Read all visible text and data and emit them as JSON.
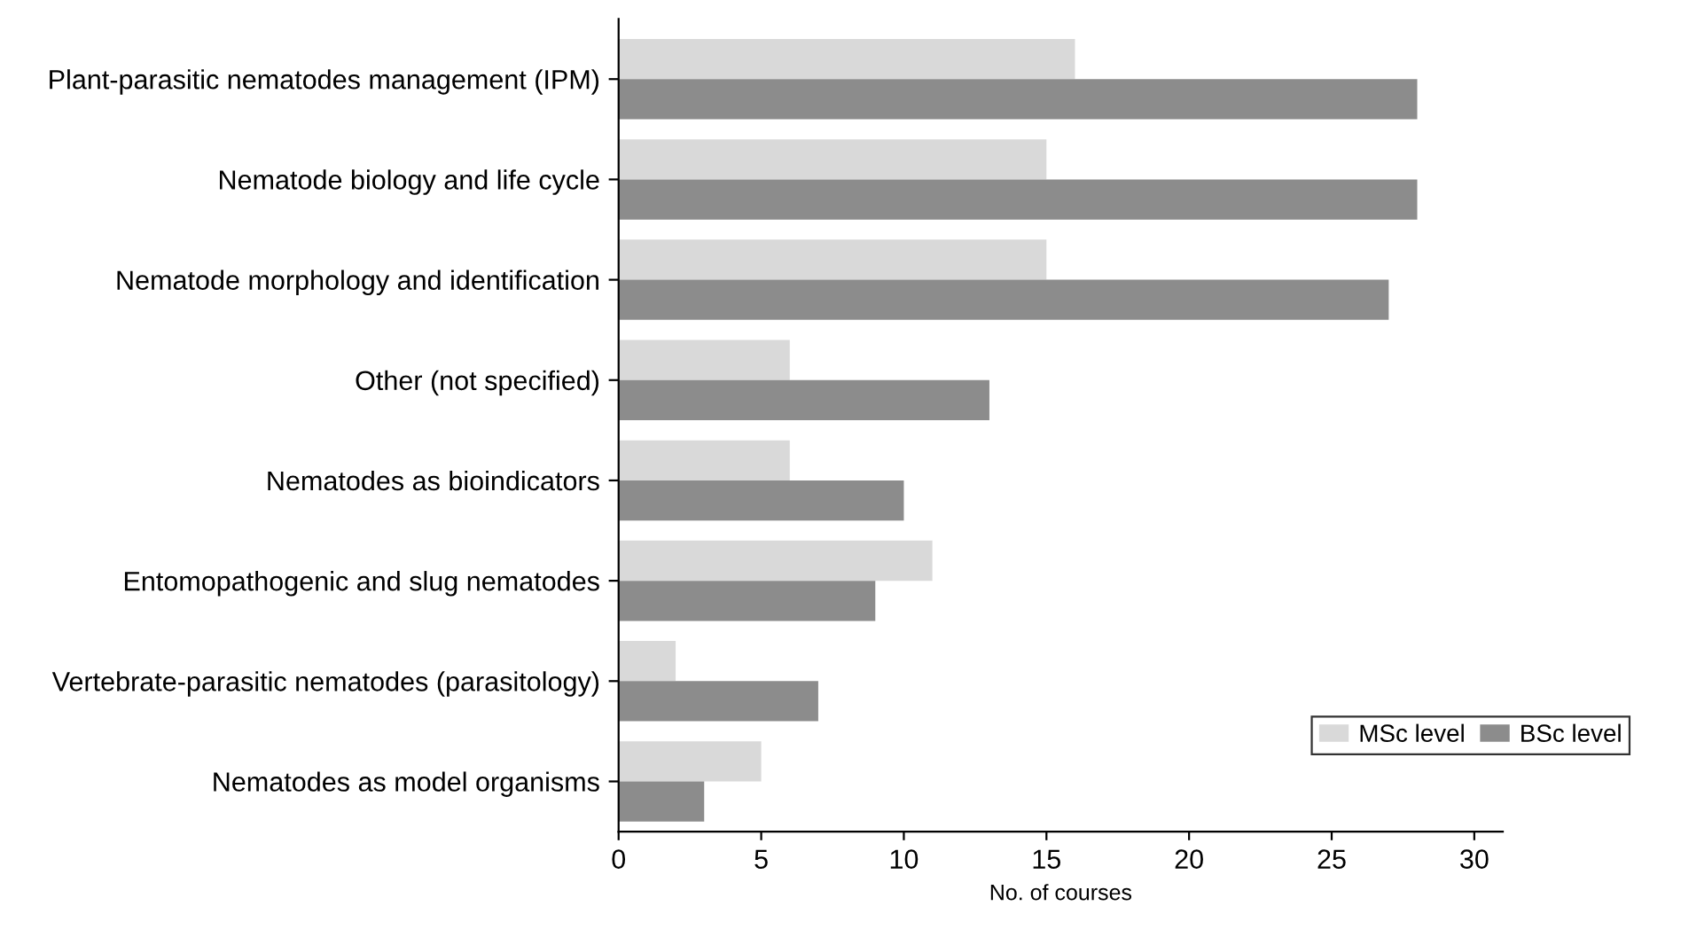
{
  "chart_data": {
    "type": "bar",
    "orientation": "horizontal",
    "xlabel": "No. of courses",
    "categories": [
      "Plant-parasitic nematodes management (IPM)",
      "Nematode biology and life cycle",
      "Nematode morphology and identification",
      "Other (not specified)",
      "Nematodes as bioindicators",
      "Entomopathogenic and slug nematodes",
      "Vertebrate-parasitic nematodes (parasitology)",
      "Nematodes as model organisms"
    ],
    "series": [
      {
        "name": "MSc level",
        "color": "#d9d9d9",
        "values": [
          16,
          15,
          15,
          6,
          6,
          11,
          2,
          5
        ]
      },
      {
        "name": "BSc level",
        "color": "#8c8c8c",
        "values": [
          28,
          28,
          27,
          13,
          10,
          9,
          7,
          3
        ]
      }
    ],
    "xlim": [
      0,
      31
    ],
    "xticks": [
      0,
      5,
      10,
      15,
      20,
      25,
      30
    ],
    "grid": false,
    "legend": "bottom right"
  }
}
